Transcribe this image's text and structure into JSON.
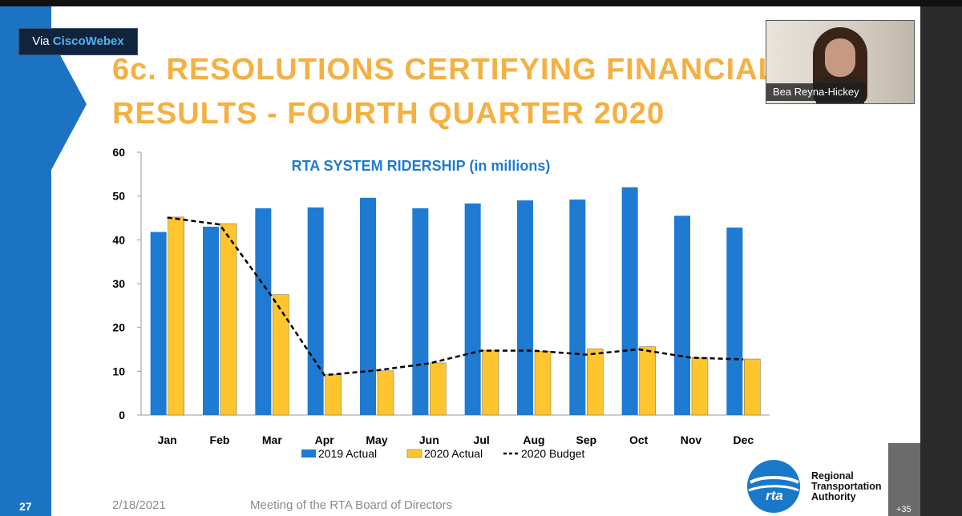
{
  "webex_badge": {
    "prefix": "Via ",
    "brand": "CiscoWebex"
  },
  "slide": {
    "title_line1": "6c. RESOLUTIONS CERTIFYING FINANCIAL",
    "title_line2": "RESULTS - FOURTH QUARTER 2020",
    "number": "27",
    "date": "2/18/2021",
    "meeting": "Meeting of the RTA Board of Directors",
    "org_name": [
      "Regional",
      "Transportation",
      "Authority"
    ],
    "logo_text": "rta"
  },
  "video": {
    "participant_name": "Bea Reyna-Hickey",
    "more_participants": "+35"
  },
  "colors": {
    "accent": "#1c73c3",
    "title": "#f4b041",
    "series2019": "#1f7ad1",
    "series2020": "#ffc52e",
    "budget": "#000000"
  },
  "chart_data": {
    "type": "bar",
    "title": "RTA SYSTEM RIDERSHIP (in millions)",
    "categories": [
      "Jan",
      "Feb",
      "Mar",
      "Apr",
      "May",
      "Jun",
      "Jul",
      "Aug",
      "Sep",
      "Oct",
      "Nov",
      "Dec"
    ],
    "ylim": [
      0,
      60
    ],
    "yticks": [
      0,
      10,
      20,
      30,
      40,
      50,
      60
    ],
    "series": [
      {
        "name": "2019 Actual",
        "kind": "bar",
        "values": [
          41.8,
          43.0,
          47.2,
          47.4,
          49.6,
          47.2,
          48.3,
          49.0,
          49.2,
          52.0,
          45.5,
          42.8
        ]
      },
      {
        "name": "2020 Actual",
        "kind": "bar",
        "values": [
          45.2,
          43.7,
          27.5,
          9.2,
          10.1,
          11.9,
          14.8,
          14.6,
          15.1,
          15.6,
          13.1,
          12.8
        ]
      },
      {
        "name": "2020 Budget",
        "kind": "line",
        "style": "dashed",
        "values": [
          45.1,
          43.5,
          27.0,
          9.1,
          10.2,
          11.8,
          14.7,
          14.7,
          13.8,
          15.0,
          13.1,
          12.7
        ]
      }
    ],
    "legend": "bottom"
  }
}
